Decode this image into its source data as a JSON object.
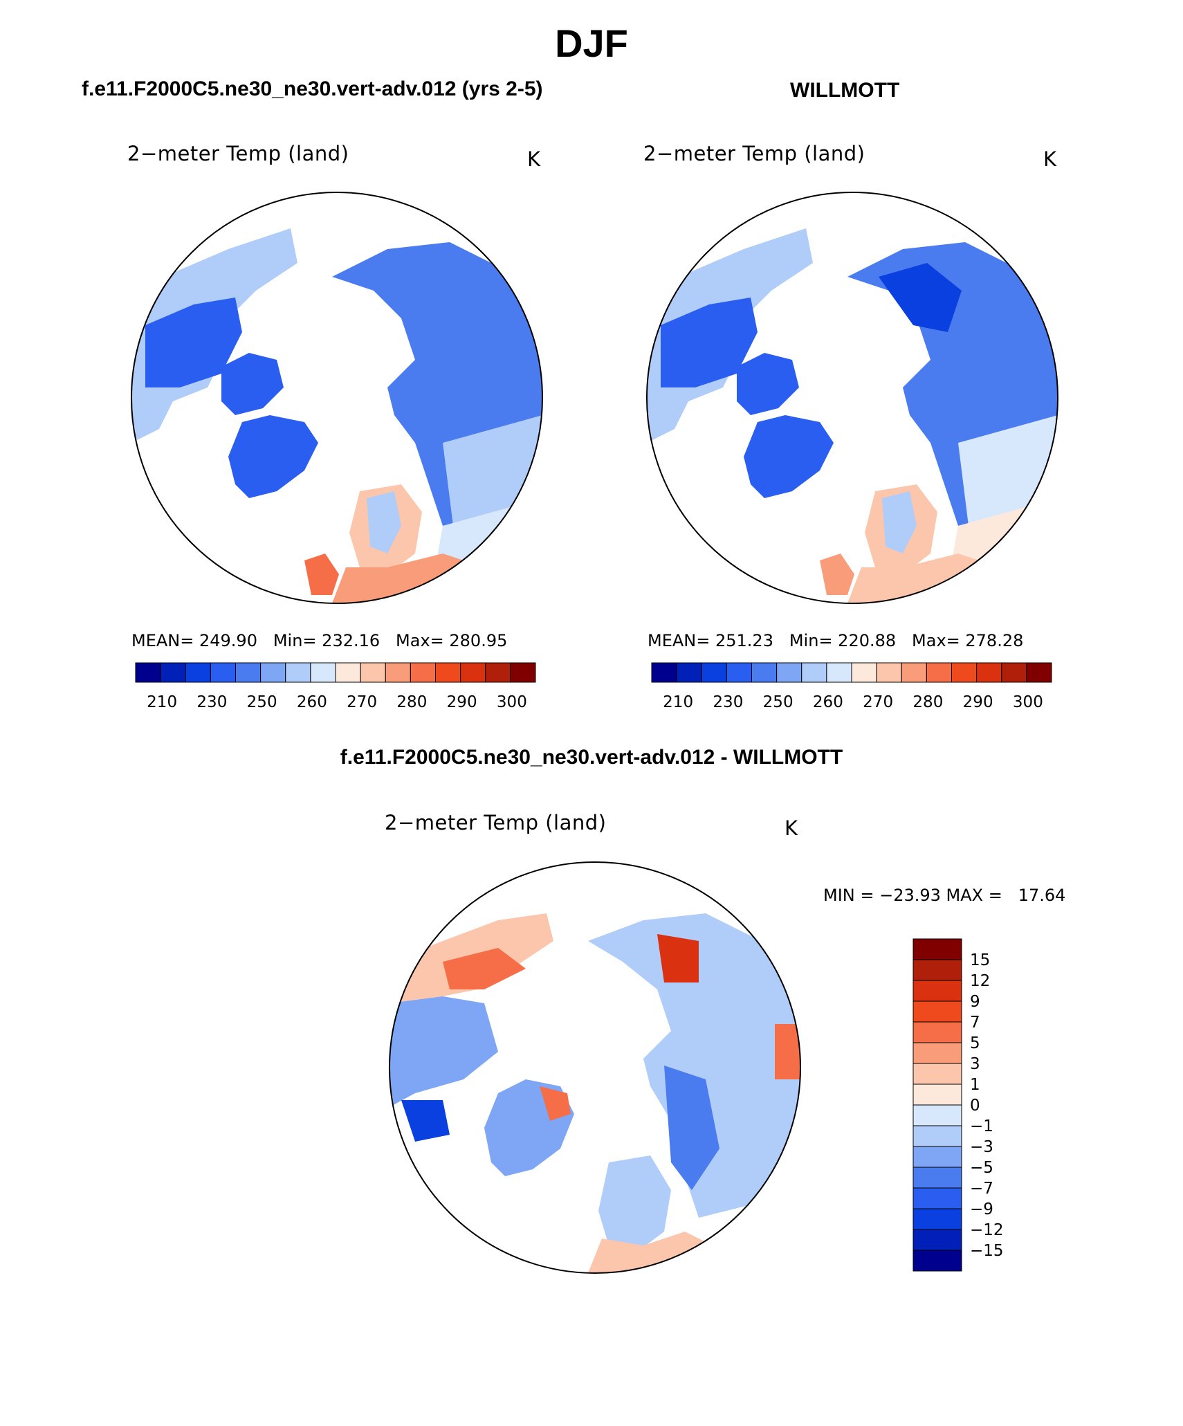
{
  "page": {
    "title": "DJF",
    "case_title": "f.e11.F2000C5.ne30_ne30.vert-adv.012 (yrs 2-5)",
    "obs_title": "WILLMOTT",
    "diff_title": "f.e11.F2000C5.ne30_ne30.vert-adv.012 - WILLMOTT"
  },
  "panels": [
    {
      "id": "case",
      "variable": "2−meter Temp (land)",
      "units": "K",
      "stats": "MEAN= 249.90   Min= 232.16   Max= 280.95",
      "colorbar_ticks": [
        "210",
        "230",
        "250",
        "260",
        "270",
        "280",
        "290",
        "300"
      ]
    },
    {
      "id": "obs",
      "variable": "2−meter Temp (land)",
      "units": "K",
      "stats": "MEAN= 251.23   Min= 220.88   Max= 278.28",
      "colorbar_ticks": [
        "210",
        "230",
        "250",
        "260",
        "270",
        "280",
        "290",
        "300"
      ]
    },
    {
      "id": "diff",
      "variable": "2−meter Temp (land)",
      "units": "K",
      "stats": "MIN = −23.93 MAX =   17.64",
      "colorbar_ticks": [
        "15",
        "12",
        "9",
        "7",
        "5",
        "3",
        "1",
        "0",
        "−1",
        "−3",
        "−5",
        "−7",
        "−9",
        "−12",
        "−15"
      ]
    }
  ],
  "colors": {
    "abs_scale": [
      "#00008f",
      "#0020b8",
      "#0a3fe0",
      "#2a5ef0",
      "#4a7cf0",
      "#7ea6f4",
      "#b0ccf8",
      "#d8e8fc",
      "#fde8dc",
      "#fcc6ac",
      "#f99c7a",
      "#f56e48",
      "#ee4a1e",
      "#da3210",
      "#b01f0a",
      "#800000"
    ],
    "diff_scale": [
      "#800000",
      "#b01f0a",
      "#da3210",
      "#ee4a1e",
      "#f56e48",
      "#f99c7a",
      "#fcc6ac",
      "#fde8dc",
      "#d8e8fc",
      "#b0ccf8",
      "#7ea6f4",
      "#4a7cf0",
      "#2a5ef0",
      "#0a3fe0",
      "#0020b8",
      "#00008f"
    ]
  }
}
